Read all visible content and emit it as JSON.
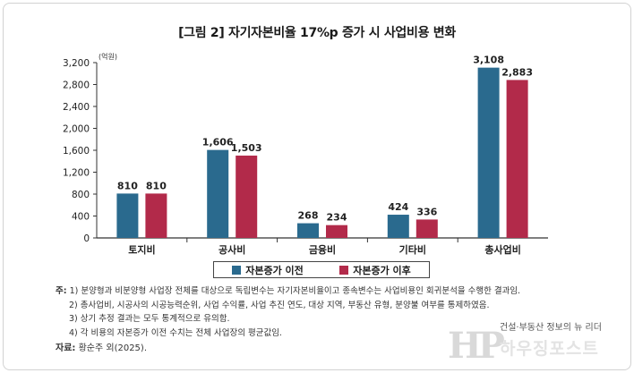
{
  "chart_data": {
    "type": "bar",
    "title": "[그림 2] 자기자본비율 17%p 증가 시 사업비용 변화",
    "unit_label": "(억원)",
    "categories": [
      "토지비",
      "공사비",
      "금융비",
      "기타비",
      "총사업비"
    ],
    "series": [
      {
        "name": "자본증가 이전",
        "color": "#2a6a8e",
        "values": [
          810,
          1606,
          268,
          424,
          3108
        ],
        "labels": [
          "810",
          "1,606",
          "268",
          "424",
          "3,108"
        ]
      },
      {
        "name": "자본증가 이후",
        "color": "#b22a4a",
        "values": [
          810,
          1503,
          234,
          336,
          2883
        ],
        "labels": [
          "810",
          "1,503",
          "234",
          "336",
          "2,883"
        ]
      }
    ],
    "ylim": [
      0,
      3200
    ],
    "yticks": [
      0,
      400,
      800,
      1200,
      1600,
      2000,
      2400,
      2800,
      3200
    ],
    "ytick_labels": [
      "0",
      "400",
      "800",
      "1,200",
      "1,600",
      "2,000",
      "2,400",
      "2,800",
      "3,200"
    ],
    "legend_position": "bottom",
    "grid": false
  },
  "notes": {
    "label": "주:",
    "lines": [
      "1) 분양형과 비분양형 사업장 전체를 대상으로 독립변수는 자기자본비율이고 종속변수는 사업비용인 회귀분석을 수행한 결과임.",
      "2) 총사업비, 시공사의 시공능력순위, 사업 수익률, 사업 추진 연도, 대상 지역, 부동산 유형, 분양불 여부를 통제하였음.",
      "3) 상기 추정 결과는 모두 통계적으로 유의함.",
      "4) 각 비용의 자본증가 이전 수치는 전체 사업장의 평균값임."
    ]
  },
  "source": {
    "label": "자료:",
    "text": "황순주 외(2025)."
  },
  "watermark": {
    "logo": "HP",
    "tagline": "건설·부동산 정보의 뉴 리더",
    "name": "하우징포스트"
  }
}
